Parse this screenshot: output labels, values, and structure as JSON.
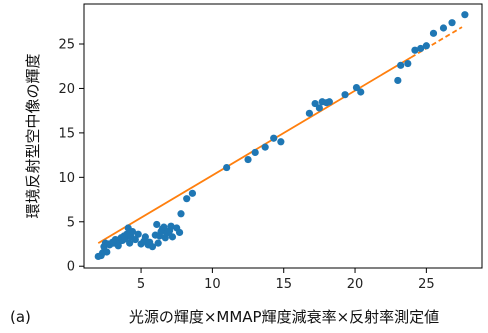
{
  "panel_label": "(a)",
  "colors": {
    "points": "#1f77b4",
    "fit_line": "#ff7f0e",
    "axes": "#000000",
    "background": "#ffffff"
  },
  "chart_data": {
    "type": "scatter",
    "title": "",
    "xlabel": "光源の輝度×MMAP輝度減衰率×反射率測定値",
    "ylabel": "環境反射型空中像の輝度",
    "xlim": [
      1.0,
      28.9
    ],
    "ylim": [
      -0.2,
      29.5
    ],
    "xticks": [
      5,
      10,
      15,
      20,
      25
    ],
    "yticks": [
      0,
      5,
      10,
      15,
      20,
      25
    ],
    "grid": false,
    "legend": false,
    "series": [
      {
        "kind": "points",
        "x": [
          2.0,
          2.2,
          2.3,
          2.4,
          2.5,
          2.6,
          2.7,
          2.8,
          3.0,
          3.1,
          3.2,
          3.4,
          3.5,
          3.6,
          3.7,
          3.8,
          3.9,
          4.0,
          4.1,
          4.2,
          4.3,
          4.4,
          4.6,
          4.8,
          5.0,
          5.2,
          5.3,
          5.5,
          5.6,
          5.8,
          6.0,
          6.1,
          6.2,
          6.3,
          6.4,
          6.5,
          6.6,
          6.7,
          6.8,
          7.0,
          7.1,
          7.2,
          7.5,
          7.7,
          7.8,
          8.2,
          8.6,
          11.0,
          12.5,
          13.0,
          13.7,
          14.3,
          14.8,
          16.8,
          17.2,
          17.5,
          17.7,
          18.0,
          18.2,
          19.3,
          20.1,
          20.4,
          23.0,
          23.2,
          23.7,
          24.2,
          24.6,
          25.0,
          25.5,
          26.2,
          26.8,
          27.7
        ],
        "y": [
          1.1,
          1.2,
          1.5,
          2.2,
          2.6,
          1.6,
          2.5,
          2.4,
          2.7,
          2.6,
          3.0,
          2.3,
          2.8,
          3.2,
          2.9,
          3.4,
          3.1,
          3.6,
          4.3,
          2.6,
          3.3,
          3.9,
          3.0,
          3.6,
          2.5,
          2.8,
          3.3,
          2.4,
          2.7,
          2.2,
          3.5,
          4.7,
          2.6,
          3.4,
          3.9,
          4.2,
          4.4,
          3.2,
          3.7,
          4.0,
          4.5,
          3.3,
          4.3,
          3.8,
          5.9,
          7.6,
          8.2,
          11.1,
          12.0,
          12.8,
          13.4,
          14.4,
          14.0,
          17.2,
          18.3,
          17.8,
          18.5,
          18.4,
          18.5,
          19.3,
          20.1,
          19.6,
          20.9,
          22.6,
          22.8,
          24.3,
          24.5,
          24.8,
          26.2,
          26.8,
          27.4,
          28.3
        ]
      },
      {
        "kind": "fit_line",
        "x": [
          2.0,
          27.5
        ],
        "y": [
          2.6,
          26.9
        ]
      }
    ]
  }
}
